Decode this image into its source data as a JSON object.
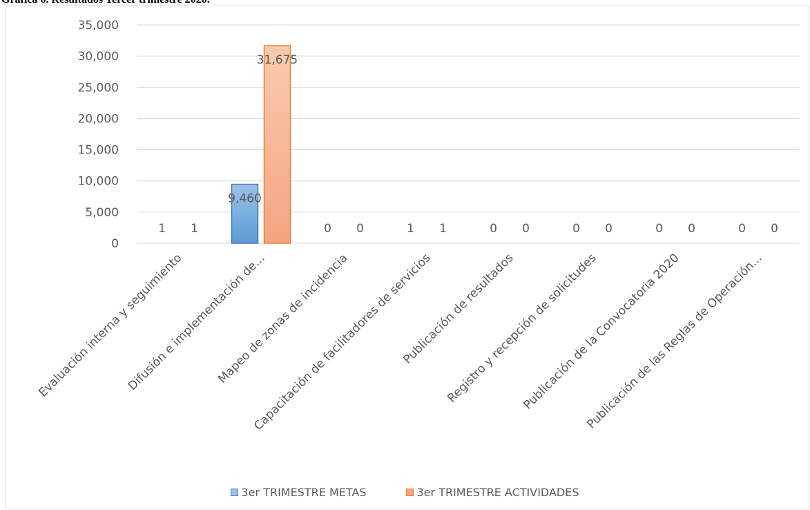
{
  "caption": "Gráfica 6. Resultados Tercer trimestre 2020.",
  "chart_data": {
    "type": "bar",
    "categories": [
      "Evaluación interna y seguimiento",
      "Difusión e implementación de...",
      "Mapeo de zonas de incidencia",
      "Capacitación de facilitadores de servicios",
      "Publicación de resultados",
      "Registro y recepción de solicitudes",
      "Publicación de la Convocatoria 2020",
      "Publicación de las Reglas de Operación..."
    ],
    "series": [
      {
        "name": "3er TRIMESTRE METAS",
        "values": [
          1,
          9460,
          0,
          1,
          0,
          0,
          0,
          0
        ],
        "labels": [
          "1",
          "9,460",
          "0",
          "1",
          "0",
          "0",
          "0",
          "0"
        ],
        "color": "#9dc3e6",
        "color_dark": "#5b9bd5",
        "border": "#4472c4"
      },
      {
        "name": "3er TRIMESTRE ACTIVIDADES",
        "values": [
          1,
          31675,
          0,
          1,
          0,
          0,
          0,
          0
        ],
        "labels": [
          "1",
          "31,675",
          "0",
          "1",
          "0",
          "0",
          "0",
          "0"
        ],
        "color": "#f8cbad",
        "color_dark": "#f4a582",
        "border": "#ed7d31"
      }
    ],
    "yticks": [
      "0",
      "5,000",
      "10,000",
      "15,000",
      "20,000",
      "25,000",
      "30,000",
      "35,000"
    ],
    "ylim": [
      0,
      35000
    ],
    "grid": true,
    "legend_position": "bottom"
  }
}
